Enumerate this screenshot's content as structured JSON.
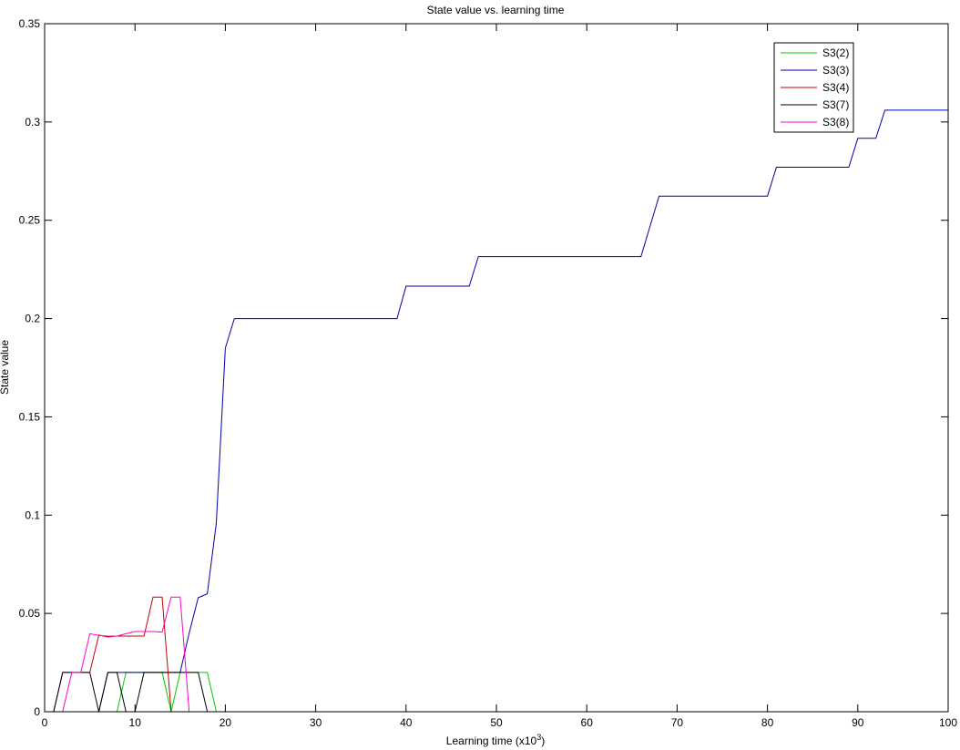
{
  "chart_data": {
    "type": "line",
    "title": "State value vs. learning time",
    "xlabel": "Learning time (x10",
    "xlabel_superscript": "3",
    "xlabel_suffix": ")",
    "ylabel": "State value",
    "xlim": [
      0,
      100
    ],
    "ylim": [
      0,
      0.35
    ],
    "xticks": [
      0,
      10,
      20,
      30,
      40,
      50,
      60,
      70,
      80,
      90,
      100
    ],
    "xtick_labels": [
      "0",
      "10",
      "20",
      "30",
      "40",
      "50",
      "60",
      "70",
      "80",
      "90",
      "100"
    ],
    "yticks": [
      0,
      0.05,
      0.1,
      0.15,
      0.2,
      0.25,
      0.3,
      0.35
    ],
    "ytick_labels": [
      "0",
      "0.05",
      "0.1",
      "0.15",
      "0.2",
      "0.25",
      "0.3",
      "0.35"
    ],
    "grid": false,
    "legend_position": "top-right",
    "series": [
      {
        "name": "S3(2)",
        "color": "#00cc00",
        "x": [
          0,
          8,
          9,
          13,
          14,
          15,
          16,
          17,
          18,
          19,
          100
        ],
        "y": [
          0,
          0,
          0.02,
          0.02,
          0,
          0.02,
          0.02,
          0.02,
          0.02,
          0,
          0
        ]
      },
      {
        "name": "S3(3)",
        "color": "#0000aa",
        "x": [
          0,
          6,
          7,
          14,
          15,
          16,
          17,
          18,
          19,
          20,
          21,
          39,
          40,
          47,
          48,
          66,
          68,
          80,
          81,
          89,
          90,
          92,
          93,
          100
        ],
        "y": [
          0,
          0,
          0.02,
          0.02,
          0.02,
          0.04,
          0.058,
          0.06,
          0.096,
          0.185,
          0.2,
          0.2,
          0.2165,
          0.2165,
          0.2315,
          0.2315,
          0.2623,
          0.2623,
          0.277,
          0.277,
          0.2917,
          0.2917,
          0.306,
          0.306
        ]
      },
      {
        "name": "S3(4)",
        "color": "#cc0000",
        "x": [
          0,
          1,
          2,
          5,
          6,
          7,
          8,
          11,
          12,
          13,
          14,
          100
        ],
        "y": [
          0,
          0,
          0.02,
          0.02,
          0.039,
          0.038,
          0.0385,
          0.0385,
          0.0583,
          0.0583,
          0,
          0
        ]
      },
      {
        "name": "S3(7)",
        "color": "#000000",
        "x": [
          0,
          1,
          2,
          5,
          6,
          7,
          8,
          9,
          10,
          11,
          14,
          15,
          16,
          17,
          18,
          100
        ],
        "y": [
          0,
          0,
          0.02,
          0.02,
          0,
          0.02,
          0.02,
          0,
          0,
          0.02,
          0.02,
          0.02,
          0.02,
          0.02,
          0,
          0
        ]
      },
      {
        "name": "S3(8)",
        "color": "#ff00cc",
        "x": [
          0,
          2,
          3,
          4,
          5,
          6,
          7,
          8,
          9,
          10,
          12,
          13,
          14,
          15,
          16,
          17,
          100
        ],
        "y": [
          0,
          0,
          0.02,
          0.02,
          0.0397,
          0.0388,
          0.0385,
          0.0385,
          0.0397,
          0.0408,
          0.0408,
          0.0405,
          0.0583,
          0.0583,
          0,
          0,
          0
        ]
      }
    ]
  }
}
